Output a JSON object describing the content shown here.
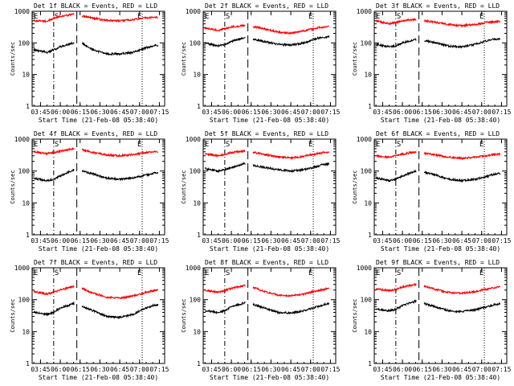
{
  "figure": {
    "ylabel": "Counts/sec",
    "xlabel": "Start Time (21-Feb-08 05:38:40)",
    "colors": {
      "events": "#000000",
      "lld": "#ff0000",
      "axes": "#000000"
    }
  },
  "chart_data": [
    {
      "type": "line",
      "title": "Det 1f BLACK = Events, RED = LLD",
      "xlabel": "Start Time (21-Feb-08 05:38:40)",
      "ylabel": "Counts/sec",
      "yscale": "log",
      "ylim": [
        1,
        1000
      ],
      "xticks": [
        "03:45",
        "06:00",
        "06:15",
        "06:30",
        "06:45",
        "07:00",
        "07:15"
      ],
      "yticks": [
        "1",
        "10",
        "100",
        "1000"
      ],
      "markers": [
        "E",
        "S",
        "E"
      ],
      "grid": false,
      "x": [
        "05:40",
        "05:50",
        "05:55",
        "06:00",
        "06:10",
        "06:17",
        "06:25",
        "06:35",
        "06:45",
        "06:55",
        "07:05",
        "07:10",
        "07:14"
      ],
      "series": [
        {
          "name": "Events",
          "values": [
            60,
            50,
            60,
            75,
            100,
            95,
            60,
            45,
            45,
            50,
            70,
            80,
            85
          ]
        },
        {
          "name": "LLD",
          "values": [
            500,
            480,
            600,
            700,
            800,
            700,
            600,
            520,
            500,
            540,
            620,
            640,
            650
          ]
        }
      ]
    },
    {
      "type": "line",
      "title": "Det 2f BLACK = Events, RED = LLD",
      "xlabel": "Start Time (21-Feb-08 05:38:40)",
      "ylabel": "Counts/sec",
      "yscale": "log",
      "ylim": [
        1,
        1000
      ],
      "xticks": [
        "03:45",
        "06:00",
        "06:15",
        "06:30",
        "06:45",
        "07:00",
        "07:15"
      ],
      "yticks": [
        "1",
        "10",
        "100",
        "1000"
      ],
      "markers": [
        "E",
        "S",
        "E"
      ],
      "grid": false,
      "x": [
        "05:40",
        "05:50",
        "05:55",
        "06:00",
        "06:10",
        "06:17",
        "06:25",
        "06:35",
        "06:45",
        "06:55",
        "07:05",
        "07:10",
        "07:14"
      ],
      "series": [
        {
          "name": "Events",
          "values": [
            100,
            80,
            90,
            110,
            150,
            130,
            110,
            90,
            85,
            100,
            140,
            150,
            160
          ]
        },
        {
          "name": "LLD",
          "values": [
            300,
            250,
            280,
            320,
            360,
            320,
            280,
            220,
            200,
            240,
            300,
            320,
            330
          ]
        }
      ]
    },
    {
      "type": "line",
      "title": "Det 3f BLACK = Events, RED = LLD",
      "xlabel": "Start Time (21-Feb-08 05:38:40)",
      "ylabel": "Counts/sec",
      "yscale": "log",
      "ylim": [
        1,
        1000
      ],
      "xticks": [
        "03:45",
        "06:00",
        "06:15",
        "06:30",
        "06:45",
        "07:00",
        "07:15"
      ],
      "yticks": [
        "1",
        "10",
        "100",
        "1000"
      ],
      "markers": [
        "E",
        "S",
        "E"
      ],
      "grid": false,
      "x": [
        "05:40",
        "05:50",
        "05:55",
        "06:00",
        "06:10",
        "06:17",
        "06:25",
        "06:35",
        "06:45",
        "06:55",
        "07:05",
        "07:10",
        "07:14"
      ],
      "series": [
        {
          "name": "Events",
          "values": [
            90,
            75,
            80,
            100,
            130,
            120,
            100,
            80,
            75,
            90,
            120,
            130,
            135
          ]
        },
        {
          "name": "LLD",
          "values": [
            500,
            400,
            450,
            500,
            550,
            500,
            450,
            380,
            350,
            380,
            450,
            470,
            480
          ]
        }
      ]
    },
    {
      "type": "line",
      "title": "Det 4f BLACK = Events, RED = LLD",
      "xlabel": "Start Time (21-Feb-08 05:38:40)",
      "ylabel": "Counts/sec",
      "yscale": "log",
      "ylim": [
        1,
        1000
      ],
      "xticks": [
        "03:45",
        "06:00",
        "06:15",
        "06:30",
        "06:45",
        "07:00",
        "07:15"
      ],
      "yticks": [
        "1",
        "10",
        "100",
        "1000"
      ],
      "markers": [
        "E",
        "S",
        "E"
      ],
      "grid": false,
      "x": [
        "05:40",
        "05:50",
        "05:55",
        "06:00",
        "06:10",
        "06:17",
        "06:25",
        "06:35",
        "06:45",
        "06:55",
        "07:05",
        "07:10",
        "07:14"
      ],
      "series": [
        {
          "name": "Events",
          "values": [
            60,
            50,
            55,
            70,
            110,
            100,
            80,
            60,
            55,
            60,
            75,
            85,
            90
          ]
        },
        {
          "name": "LLD",
          "values": [
            400,
            350,
            380,
            420,
            500,
            450,
            380,
            320,
            300,
            330,
            380,
            400,
            410
          ]
        }
      ]
    },
    {
      "type": "line",
      "title": "Det 5f BLACK = Events, RED = LLD",
      "xlabel": "Start Time (21-Feb-08 05:38:40)",
      "ylabel": "Counts/sec",
      "yscale": "log",
      "ylim": [
        1,
        1000
      ],
      "xticks": [
        "03:45",
        "06:00",
        "06:15",
        "06:30",
        "06:45",
        "07:00",
        "07:15"
      ],
      "yticks": [
        "1",
        "10",
        "100",
        "1000"
      ],
      "markers": [
        "E",
        "S",
        "E"
      ],
      "grid": false,
      "x": [
        "05:40",
        "05:50",
        "05:55",
        "06:00",
        "06:10",
        "06:17",
        "06:25",
        "06:35",
        "06:45",
        "06:55",
        "07:05",
        "07:10",
        "07:14"
      ],
      "series": [
        {
          "name": "Events",
          "values": [
            120,
            100,
            110,
            130,
            170,
            150,
            130,
            110,
            100,
            110,
            140,
            160,
            170
          ]
        },
        {
          "name": "LLD",
          "values": [
            350,
            300,
            330,
            380,
            420,
            380,
            330,
            280,
            260,
            290,
            350,
            380,
            390
          ]
        }
      ]
    },
    {
      "type": "line",
      "title": "Det 6f BLACK = Events, RED = LLD",
      "xlabel": "Start Time (21-Feb-08 05:38:40)",
      "ylabel": "Counts/sec",
      "yscale": "log",
      "ylim": [
        1,
        1000
      ],
      "xticks": [
        "03:45",
        "06:00",
        "06:15",
        "06:30",
        "06:45",
        "07:00",
        "07:15"
      ],
      "yticks": [
        "1",
        "10",
        "100",
        "1000"
      ],
      "markers": [
        "E",
        "S",
        "E"
      ],
      "grid": false,
      "x": [
        "05:40",
        "05:50",
        "05:55",
        "06:00",
        "06:10",
        "06:17",
        "06:25",
        "06:35",
        "06:45",
        "06:55",
        "07:05",
        "07:10",
        "07:14"
      ],
      "series": [
        {
          "name": "Events",
          "values": [
            60,
            50,
            55,
            70,
            100,
            90,
            75,
            55,
            50,
            55,
            70,
            80,
            85
          ]
        },
        {
          "name": "LLD",
          "values": [
            300,
            270,
            300,
            340,
            400,
            360,
            320,
            270,
            250,
            270,
            310,
            330,
            340
          ]
        }
      ]
    },
    {
      "type": "line",
      "title": "Det 7f BLACK = Events, RED = LLD",
      "xlabel": "Start Time (21-Feb-08 05:38:40)",
      "ylabel": "Counts/sec",
      "yscale": "log",
      "ylim": [
        1,
        1000
      ],
      "xticks": [
        "03:45",
        "06:00",
        "06:15",
        "06:30",
        "06:45",
        "07:00",
        "07:15"
      ],
      "yticks": [
        "1",
        "10",
        "100",
        "1000"
      ],
      "markers": [
        "E",
        "S",
        "E"
      ],
      "grid": false,
      "x": [
        "05:40",
        "05:50",
        "05:55",
        "06:00",
        "06:10",
        "06:17",
        "06:25",
        "06:35",
        "06:45",
        "06:55",
        "07:05",
        "07:10",
        "07:14"
      ],
      "series": [
        {
          "name": "Events",
          "values": [
            40,
            35,
            40,
            55,
            75,
            60,
            45,
            30,
            28,
            35,
            55,
            65,
            70
          ]
        },
        {
          "name": "LLD",
          "values": [
            180,
            150,
            170,
            200,
            260,
            220,
            160,
            120,
            110,
            130,
            170,
            190,
            200
          ]
        }
      ]
    },
    {
      "type": "line",
      "title": "Det 8f BLACK = Events, RED = LLD",
      "xlabel": "Start Time (21-Feb-08 05:38:40)",
      "ylabel": "Counts/sec",
      "yscale": "log",
      "ylim": [
        1,
        1000
      ],
      "xticks": [
        "03:45",
        "06:00",
        "06:15",
        "06:30",
        "06:45",
        "07:00",
        "07:15"
      ],
      "yticks": [
        "1",
        "10",
        "100",
        "1000"
      ],
      "markers": [
        "E",
        "S",
        "E"
      ],
      "grid": false,
      "x": [
        "05:40",
        "05:50",
        "05:55",
        "06:00",
        "06:10",
        "06:17",
        "06:25",
        "06:35",
        "06:45",
        "06:55",
        "07:05",
        "07:10",
        "07:14"
      ],
      "series": [
        {
          "name": "Events",
          "values": [
            45,
            40,
            45,
            60,
            80,
            70,
            55,
            40,
            38,
            45,
            60,
            70,
            75
          ]
        },
        {
          "name": "LLD",
          "values": [
            200,
            170,
            190,
            230,
            280,
            240,
            180,
            140,
            130,
            150,
            190,
            210,
            220
          ]
        }
      ]
    },
    {
      "type": "line",
      "title": "Det 9f BLACK = Events, RED = LLD",
      "xlabel": "Start Time (21-Feb-08 05:38:40)",
      "ylabel": "Counts/sec",
      "yscale": "log",
      "ylim": [
        1,
        1000
      ],
      "xticks": [
        "03:45",
        "06:00",
        "06:15",
        "06:30",
        "06:45",
        "07:00",
        "07:15"
      ],
      "yticks": [
        "1",
        "10",
        "100",
        "1000"
      ],
      "markers": [
        "E",
        "S",
        "E"
      ],
      "grid": false,
      "x": [
        "05:40",
        "05:50",
        "05:55",
        "06:00",
        "06:10",
        "06:17",
        "06:25",
        "06:35",
        "06:45",
        "06:55",
        "07:05",
        "07:10",
        "07:14"
      ],
      "series": [
        {
          "name": "Events",
          "values": [
            50,
            45,
            50,
            65,
            90,
            75,
            60,
            45,
            42,
            48,
            62,
            70,
            75
          ]
        },
        {
          "name": "LLD",
          "values": [
            220,
            190,
            210,
            250,
            300,
            260,
            210,
            170,
            160,
            180,
            220,
            240,
            250
          ]
        }
      ]
    }
  ]
}
